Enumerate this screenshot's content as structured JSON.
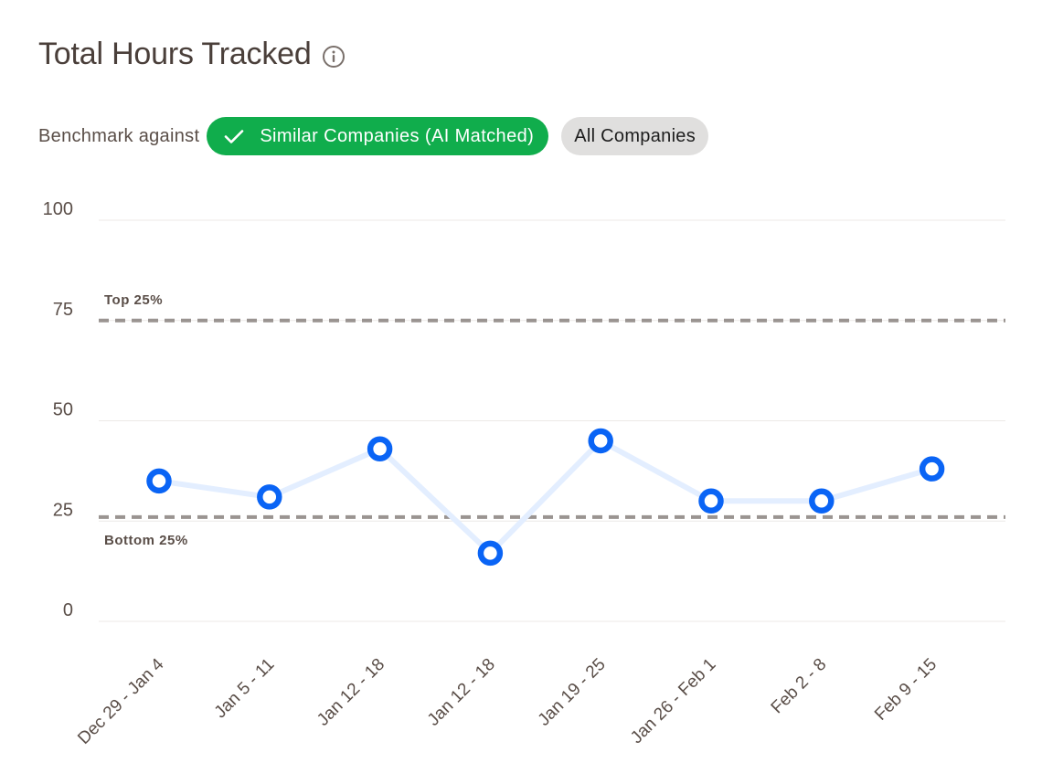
{
  "header": {
    "title": "Total Hours Tracked",
    "info_icon": "info-icon"
  },
  "benchmark": {
    "label": "Benchmark against",
    "options": [
      {
        "label": "Similar Companies (AI Matched)",
        "selected": true,
        "icon": "check-icon"
      },
      {
        "label": "All Companies",
        "selected": false
      }
    ]
  },
  "colors": {
    "accent_green": "#10ad4c",
    "point_blue": "#0a64f5",
    "line_blue": "#e3eeff",
    "benchmark_gray": "#9a9491",
    "grid": "#ece9e7"
  },
  "chart_data": {
    "type": "line",
    "title": "",
    "xlabel": "",
    "ylabel": "",
    "categories": [
      "Dec 29 - Jan 4",
      "Jan 5 - 11",
      "Jan 12 - 18",
      "Jan 12 - 18",
      "Jan 19 - 25",
      "Jan 26 - Feb 1",
      "Feb 2 - 8",
      "Feb 9 - 15"
    ],
    "values": [
      35,
      31,
      43,
      17,
      45,
      30,
      30,
      38
    ],
    "ylim": [
      0,
      100
    ],
    "yticks": [
      "0",
      "25",
      "50",
      "75",
      "100"
    ],
    "grid": true,
    "benchmarks": [
      {
        "label": "Top 25%",
        "value": 75
      },
      {
        "label": "Bottom 25%",
        "value": 26
      }
    ]
  }
}
